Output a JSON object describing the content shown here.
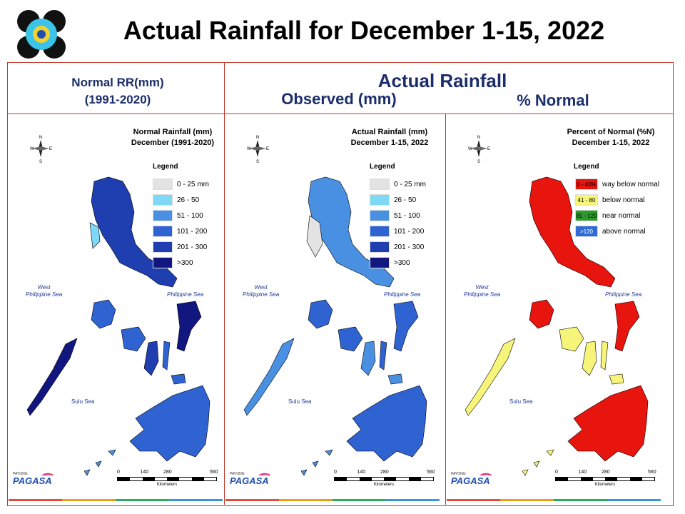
{
  "title": "Actual Rainfall for December 1-15, 2022",
  "headers": {
    "normal": [
      "Normal RR(mm)",
      "(1991-2020)"
    ],
    "actual": "Actual Rainfall",
    "observed": "Observed (mm)",
    "percent": "% Normal"
  },
  "brand": {
    "small": "PAYONG",
    "name": "PAGASA"
  },
  "panels": [
    {
      "title_lines": [
        "Normal Rainfall (mm)",
        "December (1991-2020)"
      ],
      "legend_title": "Legend",
      "legend": [
        {
          "label": "0 - 25 mm",
          "color": "#e3e3e3"
        },
        {
          "label": "26 - 50",
          "color": "#7fd8f5"
        },
        {
          "label": "51 - 100",
          "color": "#4a90e2"
        },
        {
          "label": "101 - 200",
          "color": "#2f63d1"
        },
        {
          "label": "201 - 300",
          "color": "#1f3fb0"
        },
        {
          "label": ">300",
          "color": "#12167f"
        }
      ],
      "seas": {
        "west": "West\nPhilippine Sea",
        "east": "Philippine Sea",
        "sulu": "Sulu Sea"
      }
    },
    {
      "title_lines": [
        "Actual Rainfall (mm)",
        "December 1-15, 2022"
      ],
      "legend_title": "Legend",
      "legend": [
        {
          "label": "0 - 25 mm",
          "color": "#e3e3e3"
        },
        {
          "label": "26 - 50",
          "color": "#7fd8f5"
        },
        {
          "label": "51 - 100",
          "color": "#4a90e2"
        },
        {
          "label": "101 - 200",
          "color": "#2f63d1"
        },
        {
          "label": "201 - 300",
          "color": "#1f3fb0"
        },
        {
          "label": ">300",
          "color": "#12167f"
        }
      ],
      "seas": {
        "west": "West\nPhilippine Sea",
        "east": "Philippine Sea",
        "sulu": "Sulu Sea"
      }
    },
    {
      "title_lines": [
        "Percent of Normal (%N)",
        "December 1-15, 2022"
      ],
      "legend_title": "Legend",
      "legend": [
        {
          "swatch": "0 - 40%",
          "label": "way below normal",
          "color": "#e8140e"
        },
        {
          "swatch": "41 - 80",
          "label": "below normal",
          "color": "#f6f57a"
        },
        {
          "swatch": "81 - 120",
          "label": "near normal",
          "color": "#2e9a2e"
        },
        {
          "swatch": ">120",
          "label": "above normal",
          "color": "#2f6bd6"
        }
      ],
      "seas": {
        "west": "West\nPhilippine Sea",
        "east": "Philippine Sea",
        "sulu": "Sulu Sea"
      }
    }
  ],
  "scale": {
    "ticks": [
      "0",
      "140",
      "280",
      "560"
    ],
    "unit": "Kilometers"
  },
  "compass": {
    "n": "N",
    "s": "S",
    "e": "E",
    "w": "W"
  }
}
